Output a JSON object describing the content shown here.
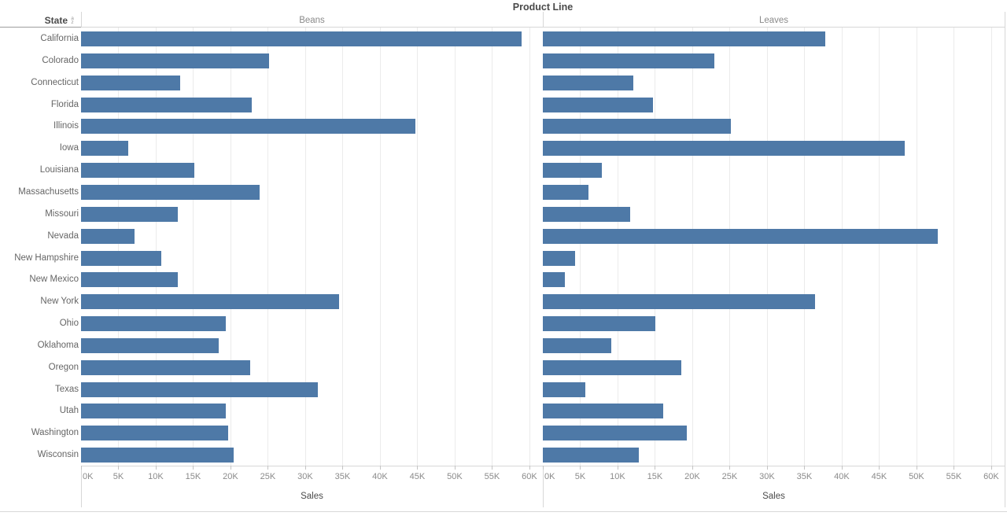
{
  "title": "Product Line",
  "row_header": {
    "label": "State",
    "sort_icon": "az-sort",
    "sort_top": "a",
    "sort_bottom": "z"
  },
  "axis": {
    "label": "Sales",
    "tick_labels": [
      "0K",
      "5K",
      "10K",
      "15K",
      "20K",
      "25K",
      "30K",
      "35K",
      "40K",
      "45K",
      "50K",
      "55K",
      "60K"
    ],
    "tick_values_k": [
      0,
      5,
      10,
      15,
      20,
      25,
      30,
      35,
      40,
      45,
      50,
      55,
      60
    ],
    "max_k": 61.8
  },
  "colors": {
    "bar": "#4e79a7",
    "gridline": "#ebebeb",
    "divider": "#d7d7d7",
    "header_underline": "#9e9e9e",
    "tick_text": "#8a8a8a",
    "state_text": "#666666",
    "header_text": "#4a4a4a",
    "panel_header_text": "#8a8a8a"
  },
  "chart_data": {
    "type": "bar",
    "orientation": "horizontal",
    "title": "Product Line",
    "xlabel": "Sales",
    "ylabel": "State",
    "units": "thousands (K) of Sales",
    "xlim_k": [
      0,
      61.8
    ],
    "grid": true,
    "categories": [
      "California",
      "Colorado",
      "Connecticut",
      "Florida",
      "Illinois",
      "Iowa",
      "Louisiana",
      "Massachusetts",
      "Missouri",
      "Nevada",
      "New Hampshire",
      "New Mexico",
      "New York",
      "Ohio",
      "Oklahoma",
      "Oregon",
      "Texas",
      "Utah",
      "Washington",
      "Wisconsin"
    ],
    "series": [
      {
        "name": "Beans",
        "values_k": [
          59.0,
          25.2,
          13.3,
          22.8,
          44.7,
          6.3,
          15.2,
          23.9,
          12.9,
          7.2,
          10.7,
          13.0,
          34.5,
          19.4,
          18.4,
          22.6,
          31.7,
          19.4,
          19.7,
          20.4
        ]
      },
      {
        "name": "Leaves",
        "values_k": [
          37.8,
          22.9,
          12.1,
          14.7,
          25.2,
          48.4,
          7.9,
          6.1,
          11.7,
          52.9,
          4.3,
          2.9,
          36.4,
          15.1,
          9.2,
          18.5,
          5.7,
          16.1,
          19.3,
          12.8
        ]
      }
    ]
  }
}
